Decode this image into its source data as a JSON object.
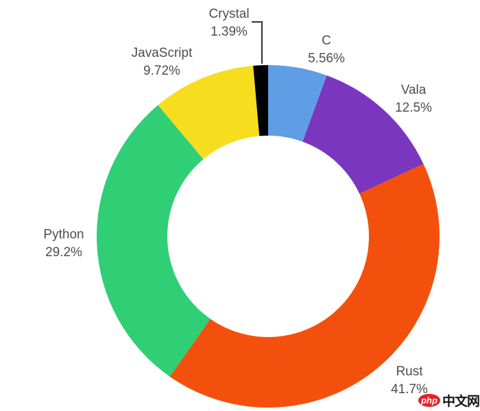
{
  "chart_data": {
    "type": "pie",
    "subtype": "donut",
    "title": "",
    "series": [
      {
        "name": "C",
        "value": 5.56,
        "pct_label": "5.56%",
        "color": "#5F9DE5"
      },
      {
        "name": "Vala",
        "value": 12.5,
        "pct_label": "12.5%",
        "color": "#7A36BE"
      },
      {
        "name": "Rust",
        "value": 41.7,
        "pct_label": "41.7%",
        "color": "#F4500D"
      },
      {
        "name": "Python",
        "value": 29.2,
        "pct_label": "29.2%",
        "color": "#30CF76"
      },
      {
        "name": "JavaScript",
        "value": 9.72,
        "pct_label": "9.72%",
        "color": "#F6DD1E"
      },
      {
        "name": "Crystal",
        "value": 1.39,
        "pct_label": "1.39%",
        "color": "#000000"
      }
    ],
    "start_angle_deg": 0,
    "direction": "clockwise",
    "inner_radius_ratio": 0.59,
    "legend": "none",
    "labels_outside": true,
    "label_text_color": "#4d4d4d",
    "leader_line_color": "#333333"
  },
  "watermark": {
    "logo_text": "php",
    "site_text": "中文网",
    "logo_color": "#E6212A"
  }
}
